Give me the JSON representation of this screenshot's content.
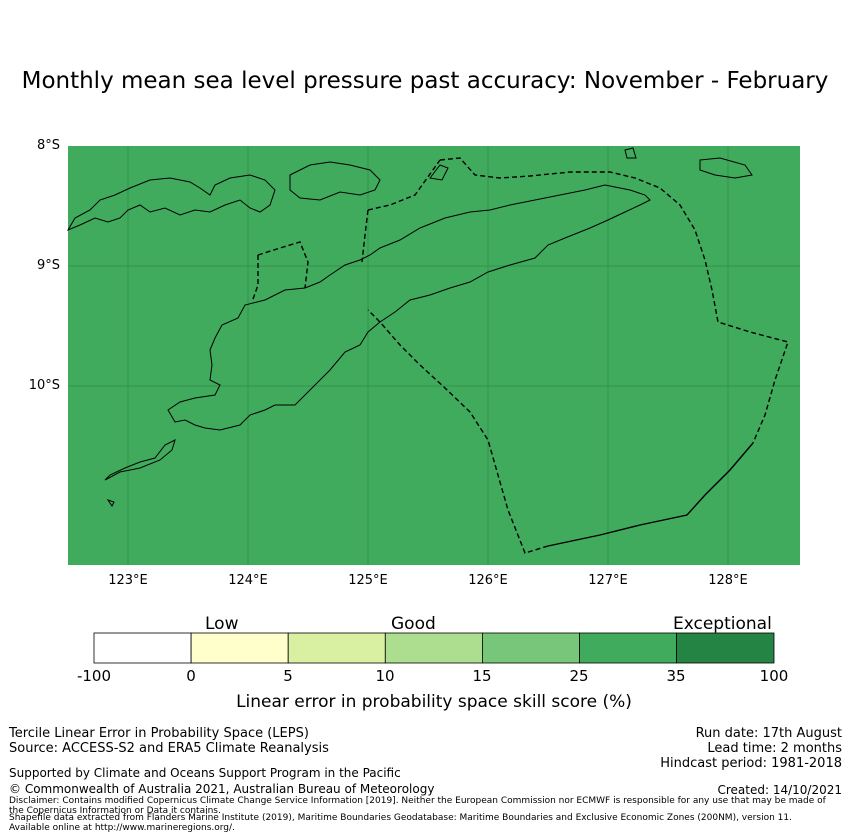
{
  "title": "Monthly mean sea level pressure past accuracy: November - February",
  "map": {
    "fill_color": "#41ab5d",
    "lat_labels": [
      "8°S",
      "9°S",
      "10°S"
    ],
    "lon_labels": [
      "123°E",
      "124°E",
      "125°E",
      "126°E",
      "127°E",
      "128°E"
    ]
  },
  "colorbar": {
    "categories": [
      "Low",
      "Good",
      "Exceptional"
    ],
    "ticks": [
      "-100",
      "0",
      "5",
      "10",
      "15",
      "25",
      "35",
      "100"
    ],
    "colors": [
      "#ffffff",
      "#ffffcc",
      "#d9f0a3",
      "#addd8e",
      "#78c679",
      "#41ab5d",
      "#238443"
    ],
    "label": "Linear error in probability space skill score (%)"
  },
  "info": {
    "method": "Tercile Linear Error in Probability Space (LEPS)",
    "source": "Source: ACCESS-S2 and ERA5 Climate Reanalysis",
    "run_date": "Run date: 17th August",
    "lead_time": "Lead time: 2 months",
    "hindcast": "Hindcast period: 1981-2018",
    "support": "Supported by Climate and Oceans Support Program in the Pacific",
    "copyright": "© Commonwealth of Australia 2021, Australian Bureau of Meteorology",
    "created": "Created: 14/10/2021",
    "disclaimer_1": "Disclaimer: Contains modified Copernicus Climate Change Service Information [2019]. Neither the European Commission nor ECMWF is responsible for any use that may be made of",
    "disclaimer_2": "the Copernicus Information or Data it contains.",
    "shapefile_1": "Shapefile data extracted from Flanders Marine Institute (2019), Maritime Boundaries Geodatabase: Maritime Boundaries and Exclusive Economic Zones (200NM), version 11.",
    "shapefile_2": "Available online at http://www.marineregions.org/."
  }
}
